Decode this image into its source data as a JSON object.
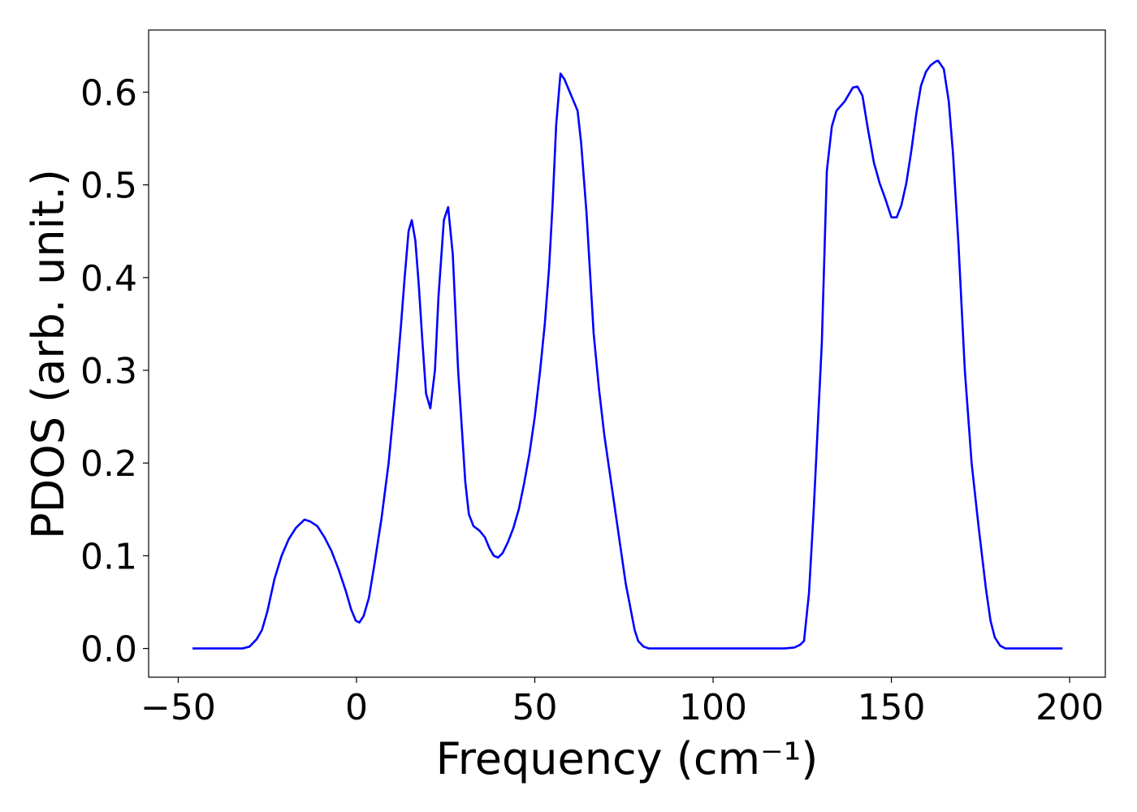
{
  "chart_data": {
    "type": "line",
    "xlabel": "Frequency (cm⁻¹)",
    "ylabel": "PDOS (arb. unit.)",
    "x": [
      -46,
      -32,
      -30,
      -28,
      -26.5,
      -25,
      -23,
      -21,
      -19,
      -17,
      -14.6,
      -13,
      -11,
      -9,
      -7,
      -5,
      -3,
      -1.5,
      -0.2,
      0.8,
      2,
      3.5,
      5,
      7,
      9,
      11,
      12.5,
      13.5,
      14.6,
      15.5,
      16.5,
      17.5,
      18.5,
      19.5,
      20.7,
      22,
      23,
      24.5,
      25.7,
      27,
      28.5,
      29.5,
      30.5,
      31.5,
      32.8,
      34.5,
      36,
      37.3,
      38.5,
      39.7,
      41,
      42.5,
      44,
      45.5,
      47,
      48.5,
      50,
      51.5,
      52.8,
      54,
      55,
      56,
      57.2,
      58.3,
      59.5,
      62,
      63,
      64.5,
      66.5,
      68,
      69.5,
      71,
      72.5,
      74,
      75.5,
      77,
      78,
      79,
      80.5,
      82,
      120,
      122.8,
      124.4,
      125.5,
      126.9,
      128.2,
      130.5,
      131.9,
      133.3,
      134.6,
      136.9,
      139.2,
      140.5,
      141.9,
      143.3,
      145.1,
      146.7,
      148.3,
      150,
      151.5,
      152.8,
      154.2,
      155.6,
      157,
      158.3,
      159.7,
      161,
      162.4,
      163.1,
      164.7,
      166.1,
      167.3,
      168.8,
      170.6,
      172.5,
      174.5,
      176.5,
      177.8,
      179,
      180.5,
      182,
      198
    ],
    "series": [
      {
        "color": "#0000ff",
        "values": [
          0,
          0,
          0.002,
          0.01,
          0.02,
          0.04,
          0.075,
          0.1,
          0.118,
          0.13,
          0.139,
          0.137,
          0.132,
          0.12,
          0.105,
          0.085,
          0.062,
          0.042,
          0.03,
          0.028,
          0.035,
          0.055,
          0.09,
          0.14,
          0.2,
          0.28,
          0.35,
          0.4,
          0.45,
          0.462,
          0.44,
          0.39,
          0.33,
          0.275,
          0.259,
          0.3,
          0.38,
          0.462,
          0.476,
          0.425,
          0.3,
          0.24,
          0.18,
          0.145,
          0.132,
          0.127,
          0.12,
          0.108,
          0.1,
          0.098,
          0.103,
          0.115,
          0.13,
          0.15,
          0.178,
          0.21,
          0.25,
          0.3,
          0.35,
          0.41,
          0.48,
          0.565,
          0.62,
          0.614,
          0.603,
          0.58,
          0.545,
          0.47,
          0.34,
          0.28,
          0.23,
          0.19,
          0.15,
          0.11,
          0.07,
          0.04,
          0.02,
          0.008,
          0.002,
          0,
          0,
          0.001,
          0.004,
          0.008,
          0.06,
          0.148,
          0.33,
          0.515,
          0.563,
          0.58,
          0.59,
          0.605,
          0.606,
          0.596,
          0.563,
          0.524,
          0.502,
          0.485,
          0.465,
          0.465,
          0.478,
          0.502,
          0.537,
          0.577,
          0.607,
          0.622,
          0.629,
          0.633,
          0.634,
          0.625,
          0.59,
          0.533,
          0.437,
          0.3,
          0.2,
          0.13,
          0.065,
          0.03,
          0.012,
          0.003,
          0,
          0
        ]
      }
    ],
    "xlim": [
      -58.3,
      210
    ],
    "ylim": [
      -0.031,
      0.667
    ],
    "xticks": [
      {
        "value": -50,
        "label": "−50"
      },
      0,
      50,
      100,
      150,
      200
    ],
    "yticks": [
      {
        "value": 0,
        "label": "0.0"
      },
      0.1,
      0.2,
      0.3,
      0.4,
      0.5,
      0.6
    ],
    "grid": false
  }
}
